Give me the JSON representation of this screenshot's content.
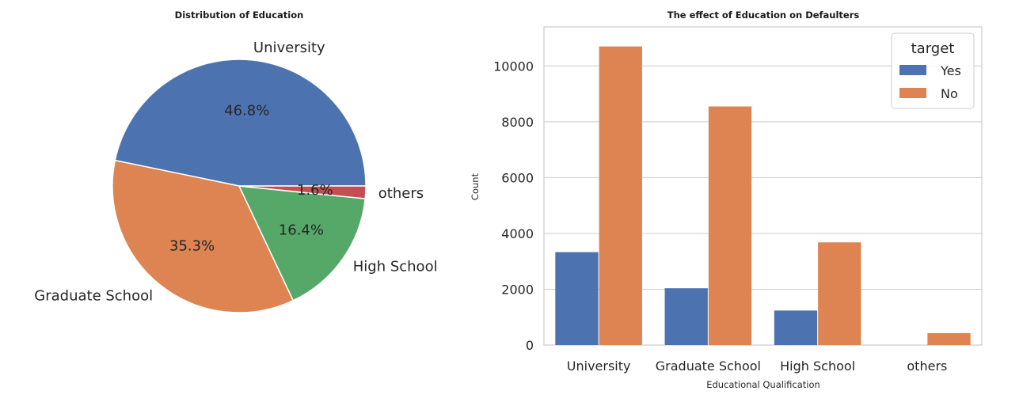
{
  "chart_data": [
    {
      "type": "pie",
      "title": "Distribution of Education",
      "categories": [
        "University",
        "Graduate School",
        "High School",
        "others"
      ],
      "values": [
        46.8,
        35.3,
        16.4,
        1.6
      ],
      "labels": [
        "46.8%",
        "35.3%",
        "16.4%",
        "1.6%"
      ],
      "colors": [
        "#4c72b0",
        "#dd8452",
        "#55a868",
        "#c44e52"
      ]
    },
    {
      "type": "bar",
      "title": "The effect of Education on Defaulters",
      "xlabel": "Educational Qualification",
      "ylabel": "Count",
      "categories": [
        "University",
        "Graduate School",
        "High School",
        "others"
      ],
      "series": [
        {
          "name": "Yes",
          "values": [
            3330,
            2036,
            1237,
            0
          ],
          "color": "#4c72b0"
        },
        {
          "name": "No",
          "values": [
            10700,
            8550,
            3680,
            430
          ],
          "color": "#dd8452"
        }
      ],
      "ylim": [
        0,
        11400
      ],
      "yticks": [
        0,
        2000,
        4000,
        6000,
        8000,
        10000
      ],
      "grid": true,
      "legend": {
        "title": "target",
        "position": "top-right"
      }
    }
  ]
}
